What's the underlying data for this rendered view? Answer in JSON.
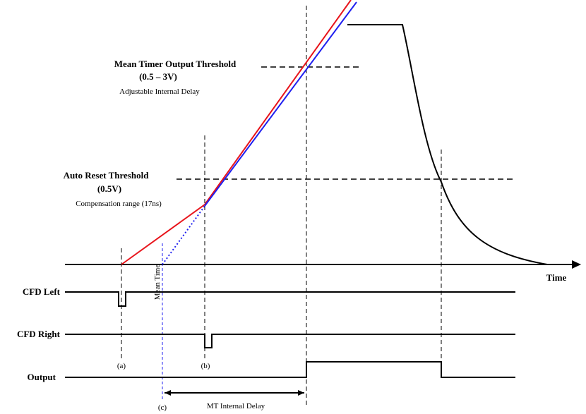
{
  "colors": {
    "red_ramp": "#e8141b",
    "blue_ramp": "#1f1ff0",
    "mean_time_marker": "#1f1ff0",
    "signal": "#000000"
  },
  "thresholds": {
    "mean_timer": {
      "title": "Mean Timer Output Threshold",
      "range": "(0.5 – 3V)",
      "note": "Adjustable Internal Delay"
    },
    "auto_reset": {
      "title": "Auto Reset Threshold",
      "value": "(0.5V)",
      "note": "Compensation range (17ns)"
    }
  },
  "axis": {
    "time_label": "Time"
  },
  "signals": {
    "cfd_left": "CFD Left",
    "cfd_right": "CFD Right",
    "output": "Output"
  },
  "markers": {
    "a": "(a)",
    "b": "(b)",
    "c": "(c)",
    "mean_time": "Mean Time"
  },
  "delay": {
    "label": "MT Internal Delay"
  }
}
